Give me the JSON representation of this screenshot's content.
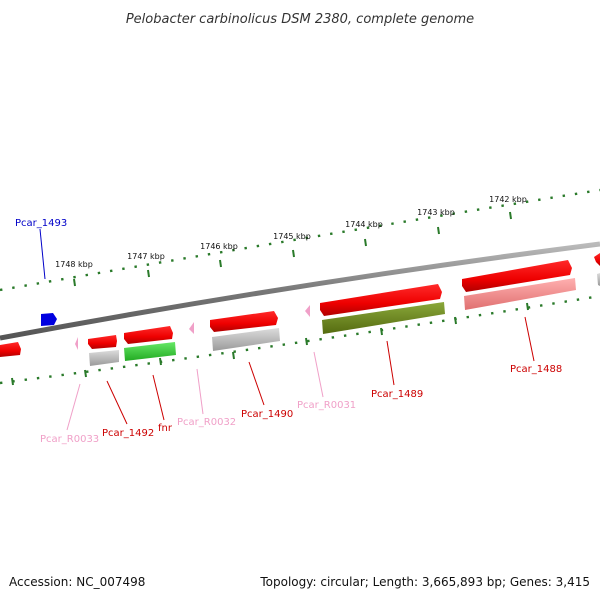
{
  "title": "Pelobacter carbinolicus DSM 2380, complete genome",
  "ticks": [
    "1742 kbp",
    "1743 kbp",
    "1744 kbp",
    "1745 kbp",
    "1746 kbp",
    "1747 kbp",
    "1748 kbp"
  ],
  "genes": [
    {
      "label": "Pcar_1493",
      "color": "#0000c8",
      "feature": "blue-arrow"
    },
    {
      "label": "Pcar_R0033",
      "color": "#f0a0c8",
      "feature": "pink-triangle"
    },
    {
      "label": "Pcar_1492",
      "color": "#cc0000",
      "feature": "red-arrow"
    },
    {
      "label": "fnr",
      "color": "#cc0000",
      "feature": "red-arrow"
    },
    {
      "label": "Pcar_R0032",
      "color": "#f0a0c8",
      "feature": "pink-triangle"
    },
    {
      "label": "Pcar_1490",
      "color": "#cc0000",
      "feature": "red-arrow"
    },
    {
      "label": "Pcar_R0031",
      "color": "#f0a0c8",
      "feature": "pink-triangle"
    },
    {
      "label": "Pcar_1489",
      "color": "#cc0000",
      "feature": "red-arrow"
    },
    {
      "label": "Pcar_1488",
      "color": "#cc0000",
      "feature": "red-arrow"
    }
  ],
  "colors": {
    "cds": "#ff0000",
    "trna": "#f0a0c8",
    "tick": "#2a7a2a",
    "backbone": "#777777",
    "cog_green": "#44cc44",
    "cog_olive": "#6b8a1e",
    "cog_grey": "#b0b0b0",
    "cog_salmon": "#f08080"
  },
  "footer": {
    "accession": "Accession: NC_007498",
    "topology": "Topology: circular; Length: 3,665,893 bp; Genes: 3,415"
  }
}
